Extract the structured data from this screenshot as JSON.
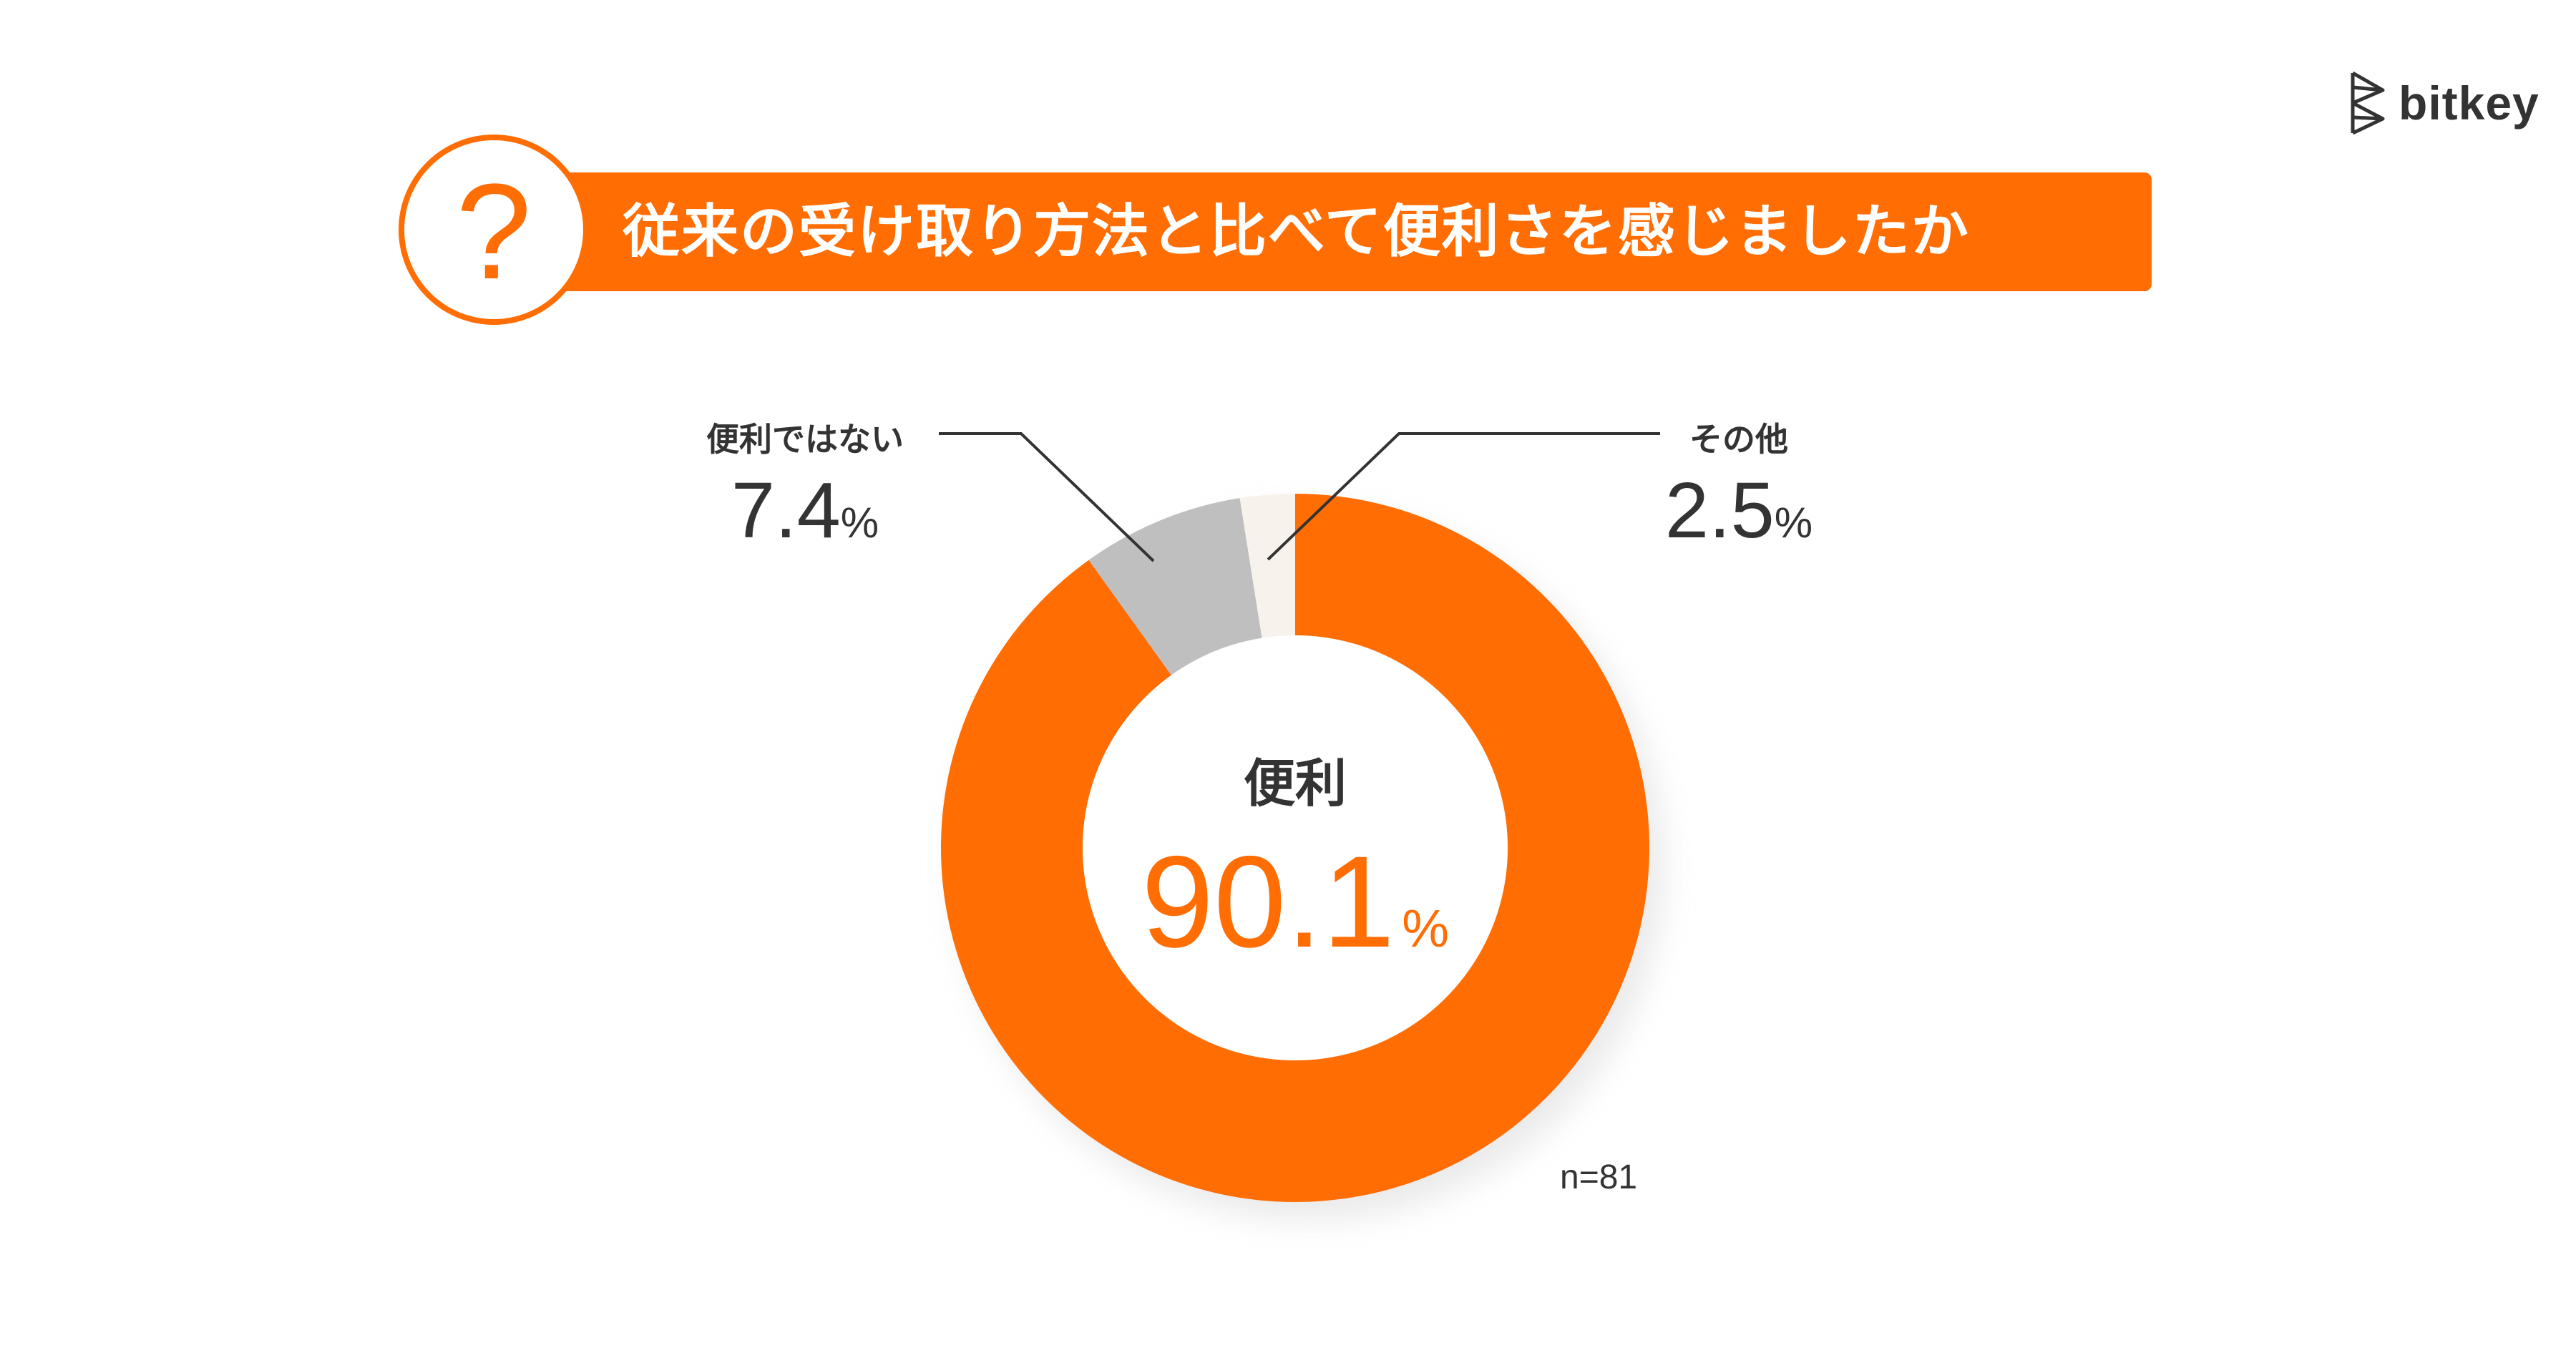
{
  "title": "従来の受け取り方法と比べて便利さを感じましたか",
  "question_icon": "?",
  "logo": {
    "text": "bitkey",
    "icon": "bitkey-mark-icon"
  },
  "colors": {
    "accent": "#FF6D03",
    "gray": "#BFBFBF",
    "cream": "#F7F3EC",
    "text": "#333333"
  },
  "chart_data": {
    "type": "pie",
    "style": "donut",
    "categories": [
      "便利",
      "便利ではない",
      "その他"
    ],
    "values": [
      90.1,
      7.4,
      2.5
    ],
    "display_values": [
      "90.1",
      "7.4",
      "2.5"
    ],
    "unit": "%",
    "sample_size": "n=81",
    "legend": "callout-labels"
  }
}
